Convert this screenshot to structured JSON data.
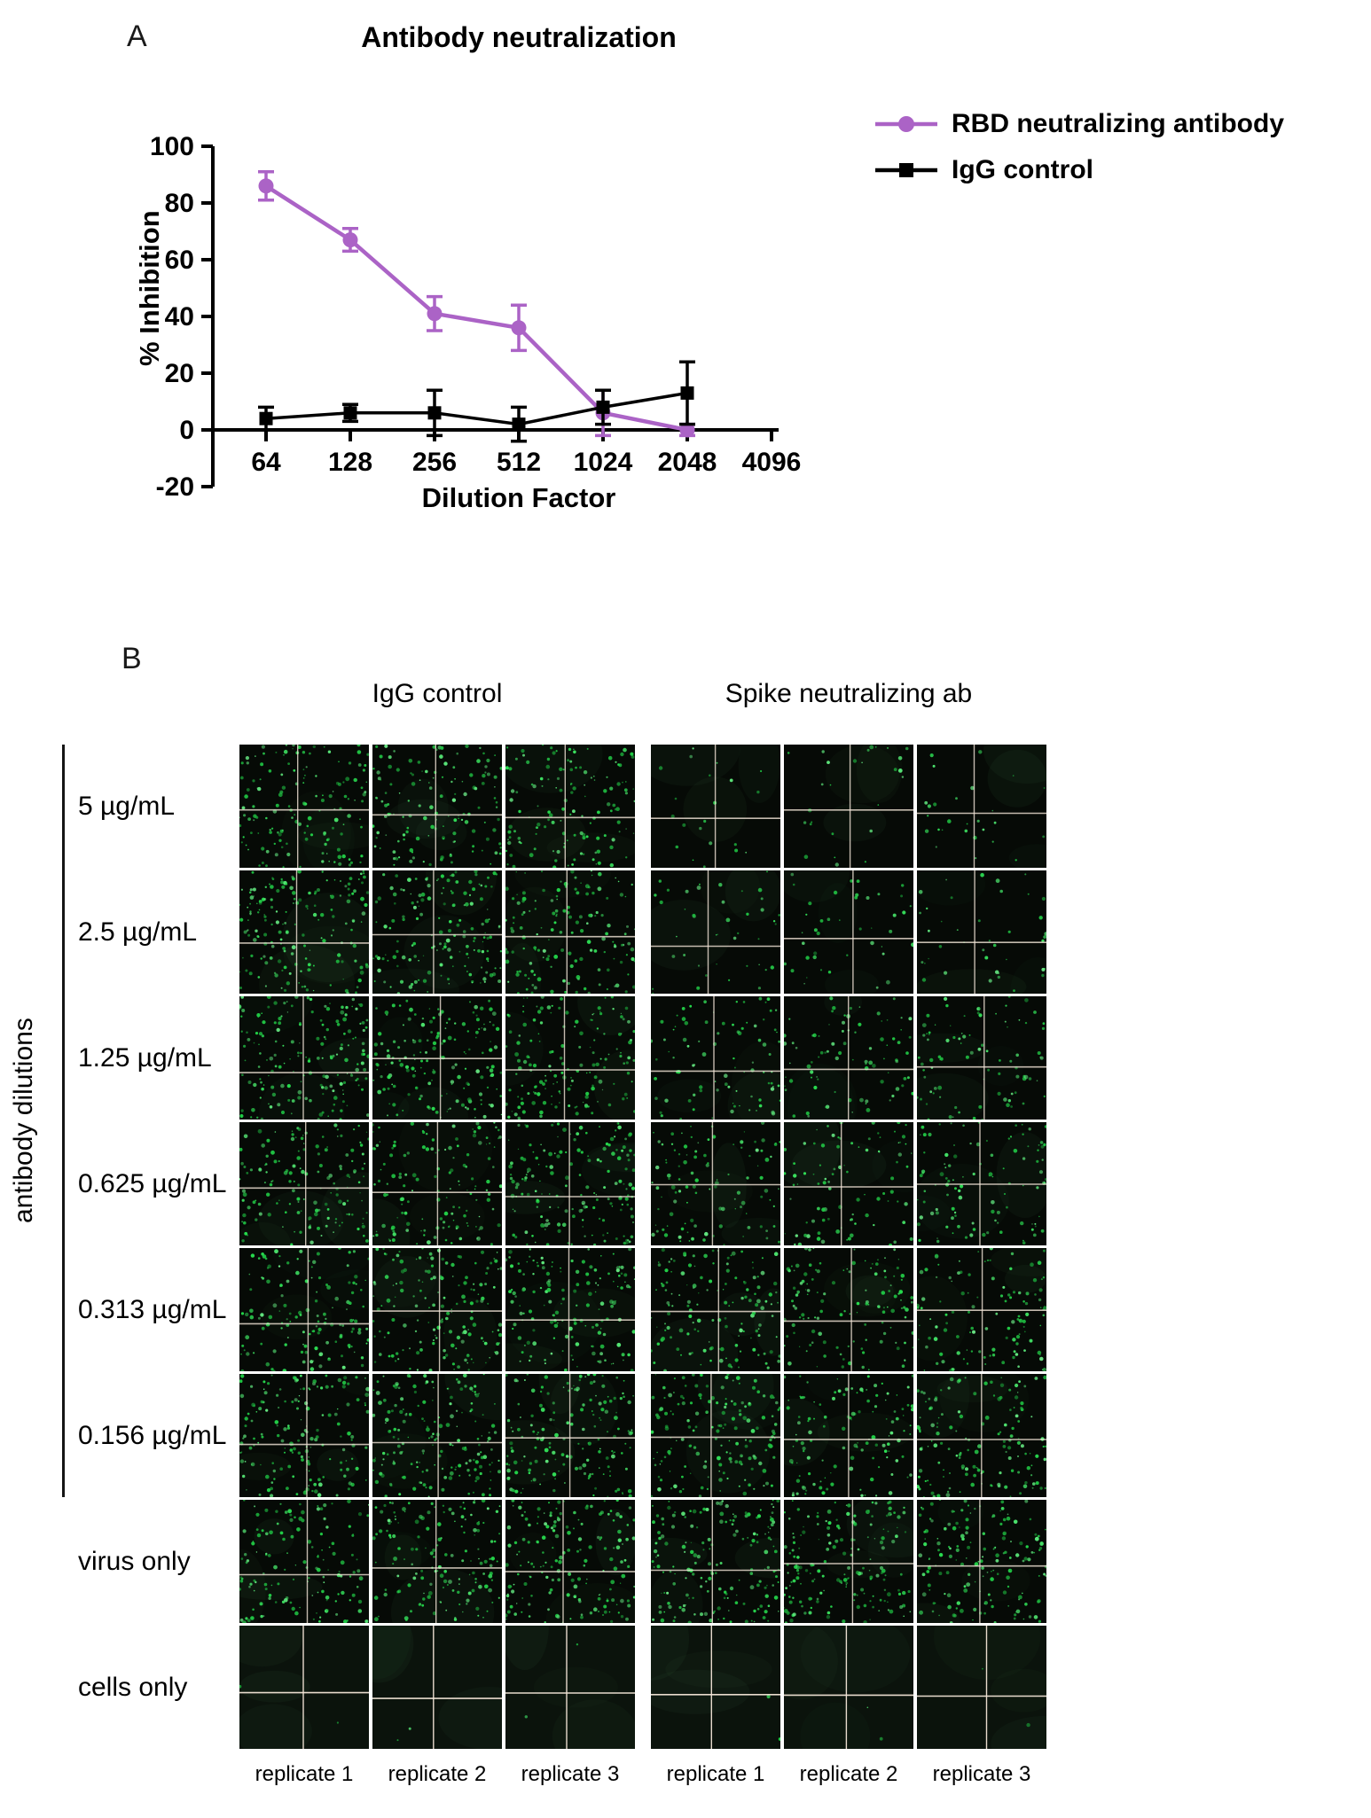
{
  "panel_a": {
    "label": "A",
    "legend": [
      {
        "label": "RBD neutralizing antibody",
        "marker": "circle",
        "color": "#ab63c6"
      },
      {
        "label": "IgG control",
        "marker": "square",
        "color": "#000000"
      }
    ],
    "chart_data": {
      "type": "line",
      "title": "Antibody neutralization",
      "xlabel": "Dilution Factor",
      "ylabel": "% Inhibition",
      "x_scale": "log2",
      "x_ticks": [
        "64",
        "128",
        "256",
        "512",
        "1024",
        "2048",
        "4096"
      ],
      "y_ticks": [
        100,
        80,
        60,
        40,
        20,
        0,
        -20
      ],
      "ylim": [
        -20,
        100
      ],
      "legend_position": "right",
      "grid": false,
      "series": [
        {
          "name": "RBD neutralizing antibody",
          "color": "#ab63c6",
          "marker": "circle",
          "x": [
            64,
            128,
            256,
            512,
            1024,
            2048
          ],
          "y": [
            86,
            67,
            41,
            36,
            6,
            0
          ],
          "yerr": [
            5,
            4,
            6,
            8,
            8,
            2
          ]
        },
        {
          "name": "IgG control",
          "color": "#000000",
          "marker": "square",
          "x": [
            64,
            128,
            256,
            512,
            1024,
            2048
          ],
          "y": [
            4,
            6,
            6,
            2,
            8,
            13
          ],
          "yerr": [
            4,
            3,
            8,
            6,
            6,
            11
          ]
        }
      ]
    }
  },
  "panel_b": {
    "label": "B",
    "group_headers": [
      "IgG control",
      "Spike neutralizing ab"
    ],
    "side_label": "antibody dilutions",
    "replicate_labels": [
      "replicate 1",
      "replicate 2",
      "replicate 3"
    ],
    "rows": [
      {
        "label": "5 µg/mL",
        "in_bracket": true,
        "igg_density": 160,
        "spike_density": 25
      },
      {
        "label": "2.5 µg/mL",
        "in_bracket": true,
        "igg_density": 160,
        "spike_density": 45
      },
      {
        "label": "1.25 µg/mL",
        "in_bracket": true,
        "igg_density": 160,
        "spike_density": 80
      },
      {
        "label": "0.625 µg/mL",
        "in_bracket": true,
        "igg_density": 160,
        "spike_density": 100
      },
      {
        "label": "0.313 µg/mL",
        "in_bracket": true,
        "igg_density": 160,
        "spike_density": 125
      },
      {
        "label": "0.156 µg/mL",
        "in_bracket": true,
        "igg_density": 160,
        "spike_density": 145
      },
      {
        "label": "virus only",
        "in_bracket": false,
        "igg_density": 160,
        "spike_density": 160
      },
      {
        "label": "cells only",
        "in_bracket": false,
        "igg_density": 2,
        "spike_density": 2
      }
    ],
    "colors": {
      "well_background": "#060a06",
      "cells_only_background": "#0b130c",
      "dot_green": "#45e06c",
      "stitch_line": "#f4e6da"
    }
  }
}
